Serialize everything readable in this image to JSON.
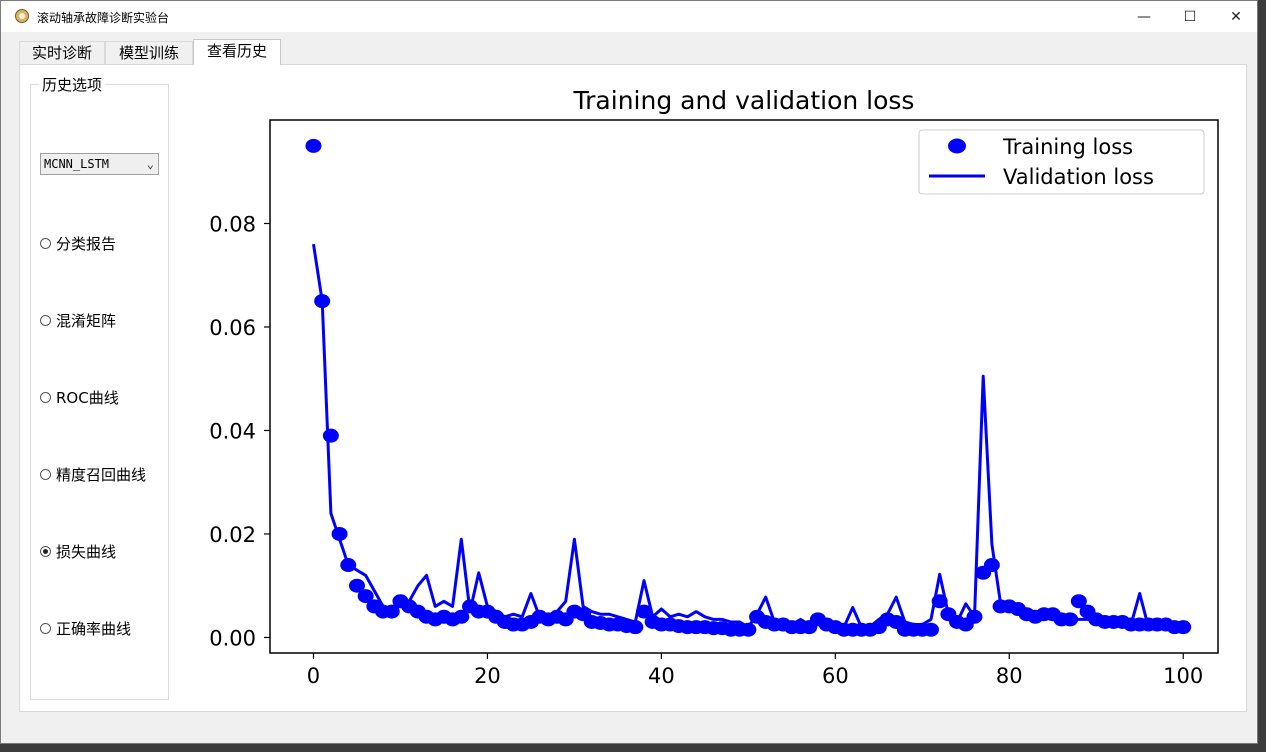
{
  "window": {
    "title": "滚动轴承故障诊断实验台",
    "minimize": "—",
    "maximize": "☐",
    "close": "✕"
  },
  "tabs": [
    "实时诊断",
    "模型训练",
    "查看历史"
  ],
  "sidebar": {
    "group_title": "历史选项",
    "model_select": {
      "value": "MCNN_LSTM"
    },
    "options": [
      {
        "label": "分类报告",
        "checked": false
      },
      {
        "label": "混淆矩阵",
        "checked": false
      },
      {
        "label": "ROC曲线",
        "checked": false
      },
      {
        "label": "精度召回曲线",
        "checked": false
      },
      {
        "label": "损失曲线",
        "checked": true
      },
      {
        "label": "正确率曲线",
        "checked": false
      }
    ]
  },
  "chart_data": {
    "type": "line",
    "title": "Training and validation loss",
    "xlabel": "",
    "ylabel": "",
    "xlim": [
      -5,
      104
    ],
    "ylim": [
      -0.003,
      0.1
    ],
    "xticks": [
      0,
      20,
      40,
      60,
      80,
      100
    ],
    "yticks": [
      0.0,
      0.02,
      0.04,
      0.06,
      0.08
    ],
    "ytick_labels": [
      "0.00",
      "0.02",
      "0.04",
      "0.06",
      "0.08"
    ],
    "legend_position": "upper right",
    "series": [
      {
        "name": "Training loss",
        "style": "markers",
        "color": "#0000ff",
        "values": [
          0.095,
          0.065,
          0.039,
          0.02,
          0.014,
          0.01,
          0.008,
          0.006,
          0.005,
          0.005,
          0.007,
          0.006,
          0.005,
          0.004,
          0.0035,
          0.004,
          0.0035,
          0.004,
          0.006,
          0.005,
          0.005,
          0.004,
          0.003,
          0.0025,
          0.0025,
          0.003,
          0.004,
          0.0035,
          0.004,
          0.0035,
          0.005,
          0.0045,
          0.003,
          0.0028,
          0.0025,
          0.0025,
          0.0022,
          0.002,
          0.005,
          0.003,
          0.0025,
          0.0025,
          0.0022,
          0.002,
          0.002,
          0.002,
          0.0018,
          0.0018,
          0.0015,
          0.0015,
          0.0015,
          0.004,
          0.003,
          0.0025,
          0.0025,
          0.002,
          0.002,
          0.002,
          0.0035,
          0.0025,
          0.002,
          0.0015,
          0.0015,
          0.0015,
          0.0015,
          0.002,
          0.0035,
          0.003,
          0.0015,
          0.0015,
          0.0015,
          0.0015,
          0.007,
          0.0045,
          0.003,
          0.0025,
          0.004,
          0.0125,
          0.014,
          0.006,
          0.006,
          0.0055,
          0.0045,
          0.004,
          0.0045,
          0.0045,
          0.0035,
          0.0035,
          0.007,
          0.005,
          0.0035,
          0.003,
          0.003,
          0.003,
          0.0025,
          0.0025,
          0.0025,
          0.0025,
          0.0025,
          0.002,
          0.002
        ]
      },
      {
        "name": "Validation loss",
        "style": "line",
        "color": "#0000ff",
        "values": [
          0.076,
          0.065,
          0.024,
          0.019,
          0.014,
          0.013,
          0.012,
          0.009,
          0.006,
          0.0055,
          0.0065,
          0.007,
          0.01,
          0.012,
          0.006,
          0.007,
          0.006,
          0.019,
          0.005,
          0.0125,
          0.006,
          0.005,
          0.004,
          0.0045,
          0.004,
          0.0085,
          0.004,
          0.004,
          0.005,
          0.007,
          0.019,
          0.006,
          0.005,
          0.0045,
          0.0045,
          0.004,
          0.0035,
          0.003,
          0.011,
          0.004,
          0.0055,
          0.004,
          0.0045,
          0.004,
          0.005,
          0.004,
          0.0035,
          0.0035,
          0.003,
          0.003,
          0.002,
          0.0045,
          0.0078,
          0.003,
          0.0025,
          0.0025,
          0.0035,
          0.0025,
          0.0025,
          0.0035,
          0.0025,
          0.002,
          0.0058,
          0.002,
          0.002,
          0.0035,
          0.0045,
          0.0078,
          0.003,
          0.0025,
          0.0025,
          0.0035,
          0.0122,
          0.0045,
          0.003,
          0.0065,
          0.004,
          0.0505,
          0.018,
          0.0065,
          0.0065,
          0.005,
          0.0045,
          0.004,
          0.004,
          0.0045,
          0.004,
          0.0035,
          0.0035,
          0.0035,
          0.0045,
          0.0035,
          0.003,
          0.003,
          0.0025,
          0.0085,
          0.002,
          0.002,
          0.002,
          0.002,
          0.002
        ]
      }
    ]
  }
}
